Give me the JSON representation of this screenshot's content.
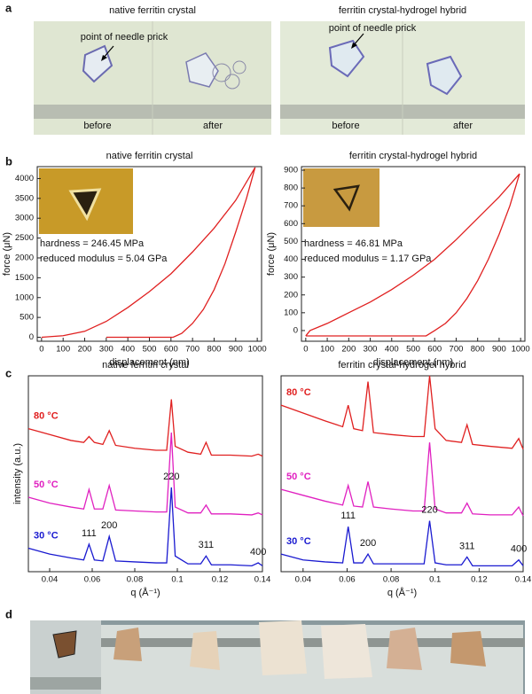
{
  "panel_labels": [
    "a",
    "b",
    "c",
    "d"
  ],
  "panel_a": {
    "left": {
      "title": "native ferritin crystal",
      "callout": "point of needle prick",
      "before": "before",
      "after": "after"
    },
    "right": {
      "title": "ferritin crystal-hydrogel hybrid",
      "callout": "point of needle prick",
      "before": "before",
      "after": "after"
    }
  },
  "chart_data": [
    {
      "type": "line",
      "title": "native ferritin crystal",
      "x_label": "displacement (nm)",
      "y_label": "force (μN)",
      "inset_text": [
        "hardness = 246.45 MPa",
        "reduced modulus = 5.04 GPa"
      ],
      "xlim": [
        -20,
        1020
      ],
      "xticks": [
        0,
        100,
        200,
        300,
        400,
        500,
        600,
        700,
        800,
        900,
        1000
      ],
      "ylim": [
        -100,
        4300
      ],
      "yticks": [
        0,
        500,
        1000,
        1500,
        2000,
        2500,
        3000,
        3500,
        4000
      ],
      "series": [
        {
          "color": "#e02020",
          "x": [
            0,
            100,
            200,
            300,
            400,
            500,
            600,
            700,
            800,
            900,
            990
          ],
          "values": [
            0,
            40,
            150,
            400,
            750,
            1150,
            1600,
            2150,
            2750,
            3450,
            4280
          ]
        },
        {
          "color": "#e02020",
          "x": [
            990,
            950,
            900,
            850,
            800,
            750,
            700,
            650,
            610,
            300
          ],
          "values": [
            4280,
            3500,
            2650,
            1850,
            1200,
            700,
            350,
            100,
            0,
            0
          ]
        }
      ]
    },
    {
      "type": "line",
      "title": "ferritin crystal-hydrogel hybrid",
      "x_label": "displacement (nm)",
      "y_label": "force (μN)",
      "inset_text": [
        "hardness = 46.81 MPa",
        "reduced modulus = 1.17 GPa"
      ],
      "xlim": [
        -20,
        1020
      ],
      "xticks": [
        0,
        100,
        200,
        300,
        400,
        500,
        600,
        700,
        800,
        900,
        1000
      ],
      "ylim": [
        -60,
        920
      ],
      "yticks": [
        0,
        100,
        200,
        300,
        400,
        500,
        600,
        700,
        800,
        900
      ],
      "series": [
        {
          "color": "#e02020",
          "x": [
            0,
            20,
            100,
            200,
            300,
            400,
            500,
            600,
            700,
            800,
            900,
            995
          ],
          "values": [
            -30,
            0,
            40,
            100,
            160,
            230,
            310,
            400,
            510,
            630,
            750,
            880
          ]
        },
        {
          "color": "#e02020",
          "x": [
            995,
            950,
            900,
            850,
            800,
            750,
            700,
            650,
            600,
            560,
            480,
            0
          ],
          "values": [
            880,
            700,
            540,
            400,
            280,
            180,
            100,
            40,
            0,
            -30,
            -30,
            -30
          ]
        }
      ]
    },
    {
      "type": "line",
      "title": "native ferritin crystal",
      "x_label": "q (Å⁻¹)",
      "y_label": "intensity (a.u.)",
      "xlim": [
        0.03,
        0.14
      ],
      "xticks": [
        0.04,
        0.06,
        0.08,
        0.1,
        0.12,
        0.14
      ],
      "ylim": [
        0,
        10
      ],
      "x": [
        0.03,
        0.04,
        0.05,
        0.056,
        0.0585,
        0.061,
        0.065,
        0.068,
        0.071,
        0.08,
        0.09,
        0.095,
        0.0972,
        0.099,
        0.105,
        0.111,
        0.1135,
        0.116,
        0.125,
        0.135,
        0.138,
        0.14
      ],
      "series": [
        {
          "name": "30 °C",
          "color": "#1a1ad0",
          "values": [
            1.2,
            0.9,
            0.7,
            0.6,
            1.4,
            0.6,
            0.55,
            1.8,
            0.55,
            0.5,
            0.45,
            0.45,
            4.3,
            0.8,
            0.4,
            0.4,
            0.8,
            0.35,
            0.35,
            0.3,
            0.45,
            0.3
          ]
        },
        {
          "name": "50 °C",
          "color": "#e020c0",
          "values": [
            3.8,
            3.5,
            3.3,
            3.2,
            4.2,
            3.2,
            3.2,
            4.4,
            3.15,
            3.1,
            3.05,
            3.05,
            7.1,
            3.3,
            3.0,
            3.0,
            3.4,
            2.95,
            2.95,
            2.9,
            3.0,
            2.9
          ]
        },
        {
          "name": "80 °C",
          "color": "#e02020",
          "values": [
            7.3,
            7.0,
            6.7,
            6.6,
            6.9,
            6.6,
            6.5,
            7.2,
            6.45,
            6.3,
            6.2,
            6.2,
            8.8,
            6.4,
            6.1,
            6.0,
            6.6,
            5.95,
            5.95,
            5.9,
            6.0,
            5.9
          ]
        }
      ],
      "peak_labels": [
        {
          "text": "111",
          "x": 0.0585
        },
        {
          "text": "200",
          "x": 0.068
        },
        {
          "text": "220",
          "x": 0.0972
        },
        {
          "text": "311",
          "x": 0.1135
        },
        {
          "text": "400",
          "x": 0.138
        }
      ]
    },
    {
      "type": "line",
      "title": "ferritin crystal-hydrogel hybrid",
      "x_label": "q (Å⁻¹)",
      "xlim": [
        0.03,
        0.14
      ],
      "xticks": [
        0.04,
        0.06,
        0.08,
        0.1,
        0.12,
        0.14
      ],
      "ylim": [
        0,
        10
      ],
      "x": [
        0.03,
        0.04,
        0.05,
        0.058,
        0.0605,
        0.063,
        0.067,
        0.0695,
        0.072,
        0.08,
        0.09,
        0.095,
        0.0975,
        0.1,
        0.105,
        0.112,
        0.1145,
        0.117,
        0.125,
        0.135,
        0.138,
        0.14
      ],
      "series": [
        {
          "name": "30 °C",
          "color": "#1a1ad0",
          "values": [
            0.9,
            0.6,
            0.5,
            0.45,
            2.3,
            0.45,
            0.45,
            0.9,
            0.4,
            0.4,
            0.4,
            0.4,
            2.6,
            0.45,
            0.35,
            0.35,
            0.75,
            0.3,
            0.3,
            0.3,
            0.6,
            0.3
          ]
        },
        {
          "name": "50 °C",
          "color": "#e020c0",
          "values": [
            4.2,
            3.9,
            3.6,
            3.4,
            4.4,
            3.35,
            3.3,
            4.6,
            3.3,
            3.2,
            3.1,
            3.1,
            6.6,
            3.2,
            3.0,
            3.0,
            3.5,
            2.95,
            2.9,
            2.9,
            3.3,
            2.85
          ]
        },
        {
          "name": "80 °C",
          "color": "#e02020",
          "values": [
            8.5,
            8.1,
            7.7,
            7.4,
            8.5,
            7.3,
            7.2,
            9.7,
            7.1,
            7.0,
            6.9,
            6.9,
            10.0,
            7.3,
            6.7,
            6.6,
            7.5,
            6.5,
            6.4,
            6.3,
            6.8,
            6.25
          ]
        }
      ],
      "peak_labels": [
        {
          "text": "111",
          "x": 0.0605
        },
        {
          "text": "200",
          "x": 0.0695
        },
        {
          "text": "220",
          "x": 0.0975
        },
        {
          "text": "311",
          "x": 0.1145
        },
        {
          "text": "400",
          "x": 0.138
        }
      ]
    }
  ]
}
